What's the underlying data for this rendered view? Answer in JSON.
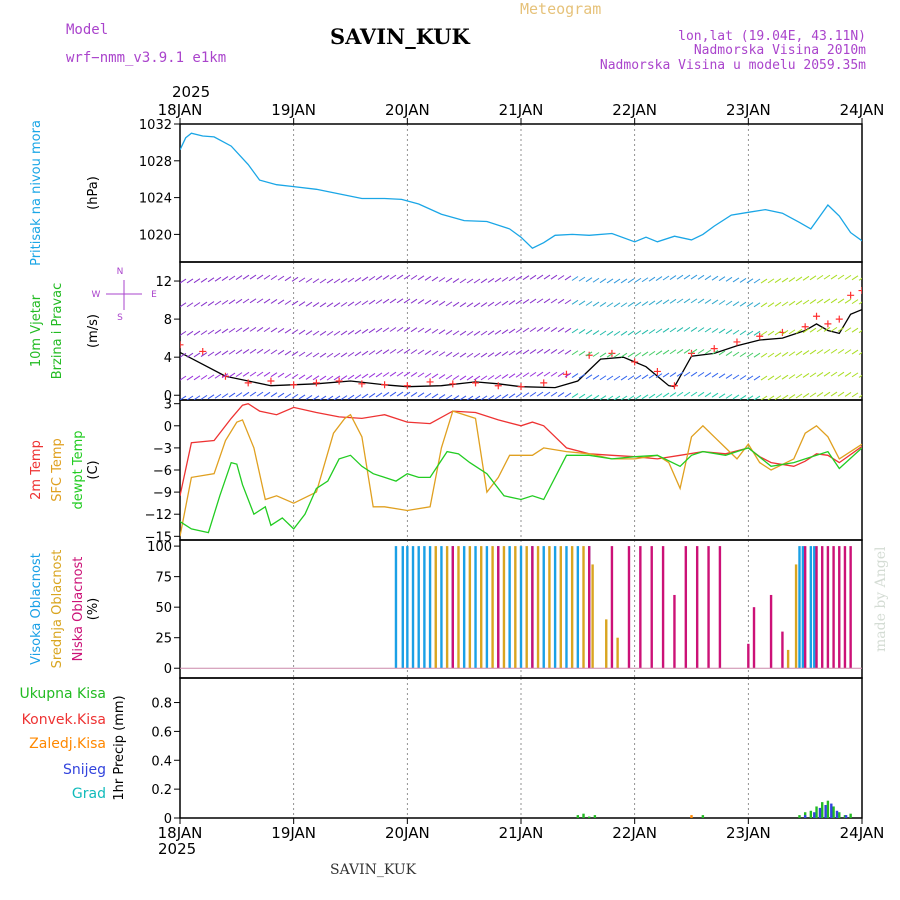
{
  "header": {
    "meteogram_label": "Meteogram",
    "station": "SAVIN_KUK",
    "model_label": "Model",
    "model_name": "wrf−nmm_v3.9.1  e1km",
    "lonlat": "lon,lat (19.04E, 43.11N)",
    "altitude": "Nadmorska Visina 2010m",
    "model_altitude": "Nadmorska Visina u modelu 2059.35m",
    "footer_station": "SAVIN_KUK",
    "credit": "made by Angel",
    "year_top": "2025",
    "year_bottom": "2025"
  },
  "colors": {
    "pressure": "#1aa6e6",
    "wind_speed": "#000000",
    "wind_gust": "#ff3030",
    "temp_2m": "#ee3333",
    "temp_sfc": "#e0a020",
    "temp_dew": "#22cc22",
    "cloud_high": "#1aa0e6",
    "cloud_mid": "#d9a520",
    "cloud_low": "#cc1177",
    "precip_total": "#22bb22",
    "precip_conv": "#ee3333",
    "precip_frz": "#ff8800",
    "precip_snow": "#3344dd",
    "precip_hail": "#11bbbb"
  },
  "chart_data": [
    {
      "type": "line",
      "panel": "pressure",
      "ylabel_lines": [
        "Pritisak na nivou mora",
        "(hPa)"
      ],
      "ylim": [
        1017,
        1032
      ],
      "yticks": [
        "1020",
        "1024",
        "1028",
        "1032"
      ],
      "ytick_values": [
        1020,
        1024,
        1028,
        1032
      ],
      "x_days": [
        "18JAN",
        "19JAN",
        "20JAN",
        "21JAN",
        "22JAN",
        "23JAN",
        "24JAN"
      ],
      "series": [
        {
          "color_key": "pressure",
          "x": [
            0,
            0.05,
            0.1,
            0.2,
            0.3,
            0.45,
            0.6,
            0.7,
            0.85,
            1.0,
            1.2,
            1.4,
            1.6,
            1.8,
            1.95,
            2.1,
            2.3,
            2.5,
            2.7,
            2.9,
            3.0,
            3.1,
            3.2,
            3.3,
            3.45,
            3.6,
            3.8,
            4.0,
            4.1,
            4.2,
            4.35,
            4.5,
            4.6,
            4.7,
            4.85,
            5.0,
            5.15,
            5.3,
            5.45,
            5.55,
            5.62,
            5.7,
            5.8,
            5.9,
            6.0
          ],
          "values": [
            1029.2,
            1030.5,
            1031.0,
            1030.7,
            1030.6,
            1029.6,
            1027.6,
            1025.9,
            1025.4,
            1025.2,
            1024.9,
            1024.4,
            1023.9,
            1023.9,
            1023.8,
            1023.3,
            1022.2,
            1021.5,
            1021.4,
            1020.6,
            1019.7,
            1018.5,
            1019.1,
            1019.9,
            1020.0,
            1019.9,
            1020.1,
            1019.2,
            1019.7,
            1019.2,
            1019.8,
            1019.4,
            1020.0,
            1020.9,
            1022.1,
            1022.4,
            1022.7,
            1022.3,
            1021.3,
            1020.6,
            1021.8,
            1023.2,
            1022.0,
            1020.2,
            1019.3
          ]
        }
      ]
    },
    {
      "type": "line",
      "panel": "wind",
      "ylabel_lines": [
        "10m Vjetar",
        "Brzina i Pravac",
        "(m/s)"
      ],
      "ylim": [
        -0.5,
        14
      ],
      "yticks": [
        "0",
        "4",
        "8",
        "12"
      ],
      "ytick_values": [
        0,
        4,
        8,
        12
      ],
      "compass": {
        "north": "N",
        "west": "W",
        "east": "E",
        "south": "S"
      },
      "series": [
        {
          "color_key": "wind_speed",
          "x": [
            0,
            0.4,
            0.8,
            1.2,
            1.5,
            1.8,
            2.0,
            2.3,
            2.6,
            2.8,
            3.0,
            3.3,
            3.5,
            3.7,
            3.9,
            4.1,
            4.3,
            4.35,
            4.5,
            4.7,
            4.9,
            5.1,
            5.3,
            5.5,
            5.6,
            5.7,
            5.8,
            5.9,
            6.0
          ],
          "values": [
            4.5,
            2.0,
            1.0,
            1.2,
            1.5,
            1.1,
            0.9,
            1.0,
            1.4,
            1.2,
            0.9,
            0.8,
            1.5,
            3.8,
            4.0,
            3.0,
            1.0,
            0.9,
            4.1,
            4.4,
            5.2,
            5.8,
            6.0,
            6.8,
            7.5,
            6.8,
            6.5,
            8.5,
            9.0
          ]
        },
        {
          "color_key": "wind_gust",
          "marker": "+",
          "x": [
            0,
            0.2,
            0.4,
            0.6,
            0.8,
            1.0,
            1.2,
            1.4,
            1.6,
            1.8,
            2.0,
            2.2,
            2.4,
            2.6,
            2.8,
            3.0,
            3.2,
            3.4,
            3.6,
            3.8,
            4.0,
            4.2,
            4.35,
            4.5,
            4.7,
            4.9,
            5.1,
            5.3,
            5.5,
            5.6,
            5.7,
            5.8,
            5.9,
            6.0
          ],
          "values": [
            5.3,
            4.6,
            2.0,
            1.3,
            1.5,
            1.1,
            1.3,
            1.5,
            1.2,
            1.1,
            1.0,
            1.4,
            1.2,
            1.3,
            1.0,
            0.9,
            1.3,
            2.2,
            4.2,
            4.4,
            3.5,
            2.5,
            1.0,
            4.4,
            4.9,
            5.6,
            6.2,
            6.6,
            7.2,
            8.3,
            7.5,
            8.0,
            10.5,
            11.0
          ]
        }
      ]
    },
    {
      "type": "line",
      "panel": "temperature",
      "ylabel_lines": [
        "2m Temp",
        "SFC Temp",
        "dewpt Temp",
        "(C)"
      ],
      "ylim": [
        -15.5,
        3.5
      ],
      "yticks": [
        "−15",
        "−12",
        "−9",
        "−6",
        "−3",
        "0",
        "3"
      ],
      "ytick_values": [
        -15,
        -12,
        -9,
        -6,
        -3,
        0,
        3
      ],
      "series": [
        {
          "name": "2m Temp",
          "color_key": "temp_2m",
          "x": [
            0,
            0.1,
            0.3,
            0.45,
            0.55,
            0.6,
            0.7,
            0.85,
            1.0,
            1.2,
            1.4,
            1.6,
            1.8,
            2.0,
            2.2,
            2.4,
            2.6,
            2.8,
            3.0,
            3.1,
            3.2,
            3.3,
            3.4,
            3.6,
            3.8,
            4.0,
            4.2,
            4.4,
            4.6,
            4.8,
            5.0,
            5.1,
            5.2,
            5.4,
            5.5,
            5.6,
            5.7,
            5.8,
            6.0
          ],
          "values": [
            -9.5,
            -2.3,
            -2.0,
            1.0,
            2.8,
            3.0,
            2.0,
            1.5,
            2.5,
            1.8,
            1.2,
            1.0,
            1.5,
            0.5,
            0.3,
            2.0,
            1.8,
            0.8,
            0.0,
            0.5,
            0.0,
            -1.5,
            -3.0,
            -3.8,
            -4.0,
            -4.2,
            -4.5,
            -4.0,
            -3.5,
            -3.8,
            -3.0,
            -4.2,
            -5.0,
            -5.5,
            -4.8,
            -3.8,
            -4.0,
            -5.0,
            -2.8
          ]
        },
        {
          "name": "SFC Temp",
          "color_key": "temp_sfc",
          "x": [
            0,
            0.1,
            0.3,
            0.4,
            0.5,
            0.55,
            0.65,
            0.75,
            0.85,
            1.0,
            1.2,
            1.35,
            1.45,
            1.5,
            1.6,
            1.7,
            1.8,
            2.0,
            2.2,
            2.3,
            2.4,
            2.6,
            2.7,
            2.8,
            2.9,
            3.0,
            3.1,
            3.2,
            3.4,
            3.6,
            3.8,
            4.0,
            4.2,
            4.3,
            4.4,
            4.5,
            4.6,
            4.7,
            4.8,
            4.9,
            5.0,
            5.1,
            5.2,
            5.4,
            5.5,
            5.6,
            5.7,
            5.8,
            6.0
          ],
          "values": [
            -15.0,
            -7.0,
            -6.5,
            -2.0,
            0.5,
            0.8,
            -3.0,
            -10.0,
            -9.5,
            -10.5,
            -9.0,
            -1.0,
            1.0,
            1.5,
            -1.5,
            -11.0,
            -11.0,
            -11.5,
            -11.0,
            -3.0,
            2.0,
            1.0,
            -9.0,
            -7.0,
            -4.0,
            -4.0,
            -4.0,
            -3.0,
            -3.5,
            -3.8,
            -4.5,
            -4.5,
            -4.0,
            -5.0,
            -8.5,
            -1.5,
            0.0,
            -1.5,
            -3.0,
            -4.5,
            -2.5,
            -5.0,
            -6.0,
            -4.5,
            -1.0,
            0.0,
            -1.5,
            -4.5,
            -2.5
          ]
        },
        {
          "name": "dewpt Temp",
          "color_key": "temp_dew",
          "x": [
            0,
            0.1,
            0.25,
            0.35,
            0.45,
            0.5,
            0.55,
            0.65,
            0.75,
            0.8,
            0.9,
            1.0,
            1.1,
            1.2,
            1.3,
            1.4,
            1.5,
            1.6,
            1.7,
            1.8,
            1.9,
            2.0,
            2.1,
            2.2,
            2.35,
            2.45,
            2.55,
            2.7,
            2.85,
            3.0,
            3.1,
            3.2,
            3.4,
            3.6,
            3.8,
            4.0,
            4.2,
            4.4,
            4.5,
            4.6,
            4.8,
            5.0,
            5.2,
            5.4,
            5.5,
            5.6,
            5.7,
            5.8,
            6.0
          ],
          "values": [
            -13.0,
            -14.0,
            -14.5,
            -9.5,
            -5.0,
            -5.2,
            -8.0,
            -12.0,
            -11.0,
            -13.5,
            -12.5,
            -14.0,
            -12.0,
            -8.5,
            -7.5,
            -4.5,
            -4.0,
            -5.5,
            -6.5,
            -7.0,
            -7.5,
            -6.5,
            -7.0,
            -7.0,
            -3.5,
            -3.8,
            -5.0,
            -6.5,
            -9.5,
            -10.0,
            -9.5,
            -10.0,
            -4.0,
            -4.0,
            -4.5,
            -4.2,
            -4.0,
            -5.5,
            -4.0,
            -3.5,
            -4.0,
            -3.0,
            -5.5,
            -5.0,
            -4.5,
            -4.0,
            -3.5,
            -5.8,
            -3.0
          ]
        }
      ]
    },
    {
      "type": "bar",
      "panel": "cloud_cover",
      "ylabel_lines": [
        "Visoka Oblacnost",
        "Srednja Oblacnost",
        "Niska Oblacnost",
        "(%)"
      ],
      "ylim": [
        -8,
        105
      ],
      "yticks": [
        "0",
        "25",
        "50",
        "75",
        "100"
      ],
      "ytick_values": [
        0,
        25,
        50,
        75,
        100
      ],
      "series": [
        {
          "name": "Visoka Oblacnost",
          "color_key": "cloud_high",
          "x": [
            1.9,
            1.96,
            2.0,
            2.05,
            2.1,
            2.15,
            2.2,
            2.3,
            2.4,
            2.5,
            2.6,
            2.7,
            2.8,
            2.9,
            3.0,
            3.1,
            3.2,
            3.3,
            3.4,
            3.5,
            3.6,
            5.45,
            5.48,
            5.55,
            5.58
          ],
          "values": [
            100,
            100,
            100,
            100,
            100,
            100,
            100,
            100,
            100,
            100,
            100,
            100,
            100,
            100,
            100,
            100,
            100,
            100,
            100,
            100,
            100,
            100,
            100,
            100,
            100
          ]
        },
        {
          "name": "Srednja Oblacnost",
          "color_key": "cloud_mid",
          "x": [
            2.25,
            2.35,
            2.45,
            2.55,
            2.65,
            2.75,
            2.85,
            2.95,
            3.05,
            3.15,
            3.25,
            3.35,
            3.45,
            3.55,
            3.63,
            3.75,
            3.85,
            5.35,
            5.42
          ],
          "values": [
            100,
            100,
            100,
            100,
            100,
            100,
            100,
            100,
            100,
            100,
            100,
            100,
            100,
            100,
            85,
            40,
            25,
            15,
            85
          ]
        },
        {
          "name": "Niska Oblacnost",
          "color_key": "cloud_low",
          "x": [
            2.4,
            2.8,
            3.1,
            3.6,
            3.8,
            3.95,
            4.05,
            4.15,
            4.25,
            4.35,
            4.45,
            4.55,
            4.65,
            4.75,
            5.0,
            5.05,
            5.2,
            5.3,
            5.5,
            5.6,
            5.65,
            5.7,
            5.75,
            5.8,
            5.85,
            5.9
          ],
          "values": [
            100,
            100,
            100,
            100,
            100,
            100,
            100,
            100,
            100,
            60,
            100,
            100,
            100,
            100,
            20,
            50,
            60,
            30,
            100,
            100,
            100,
            100,
            100,
            100,
            100,
            100
          ]
        }
      ]
    },
    {
      "type": "bar",
      "panel": "precipitation",
      "ylabel_lines": [
        "1hr Precip (mm)"
      ],
      "legend": [
        "Ukupna Kisa",
        "Konvek.Kisa",
        "Zaledj.Kisa",
        "Snijeg",
        "Grad"
      ],
      "ylim": [
        0,
        0.97
      ],
      "yticks": [
        "0",
        "0.2",
        "0.4",
        "0.6",
        "0.8"
      ],
      "ytick_values": [
        0,
        0.2,
        0.4,
        0.6,
        0.8
      ],
      "series": [
        {
          "name": "Ukupna Kisa",
          "color_key": "precip_total",
          "x": [
            3.5,
            3.55,
            3.6,
            3.65,
            4.6,
            5.45,
            5.5,
            5.55,
            5.6,
            5.65,
            5.7,
            5.75,
            5.8,
            5.85,
            5.9
          ],
          "values": [
            0.02,
            0.03,
            0.01,
            0.02,
            0.02,
            0.02,
            0.04,
            0.05,
            0.08,
            0.11,
            0.12,
            0.08,
            0.04,
            0.02,
            0.03
          ]
        },
        {
          "name": "Snijeg",
          "color_key": "precip_snow",
          "x": [
            5.5,
            5.58,
            5.63,
            5.68,
            5.73,
            5.78,
            5.86
          ],
          "values": [
            0.02,
            0.04,
            0.07,
            0.09,
            0.1,
            0.05,
            0.02
          ]
        },
        {
          "name": "Zaledj.Kisa",
          "color_key": "precip_frz",
          "x": [
            4.5
          ],
          "values": [
            0.02
          ]
        }
      ]
    }
  ]
}
